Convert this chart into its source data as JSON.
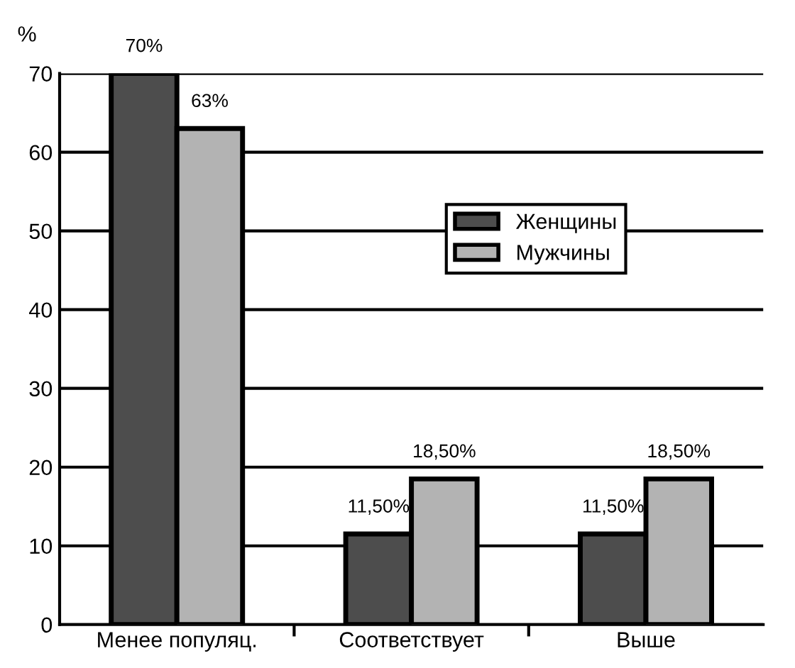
{
  "chart_data": {
    "type": "bar",
    "ylabel": "%",
    "categories": [
      "Менее популяц.",
      "Соответствует",
      "Выше"
    ],
    "series": [
      {
        "name": "Женщины",
        "color": "#4d4d4d",
        "values": [
          70,
          11.5,
          11.5
        ],
        "value_labels": [
          "70%",
          "11,50%",
          "11,50%"
        ]
      },
      {
        "name": "Мужчины",
        "color": "#b3b3b3",
        "values": [
          63,
          18.5,
          18.5
        ],
        "value_labels": [
          "63%",
          "18,50%",
          "18,50%"
        ]
      }
    ],
    "ylim": [
      0,
      70
    ],
    "yticks": [
      0,
      10,
      20,
      30,
      40,
      50,
      60,
      70
    ],
    "grid": "y",
    "legend": "right"
  }
}
